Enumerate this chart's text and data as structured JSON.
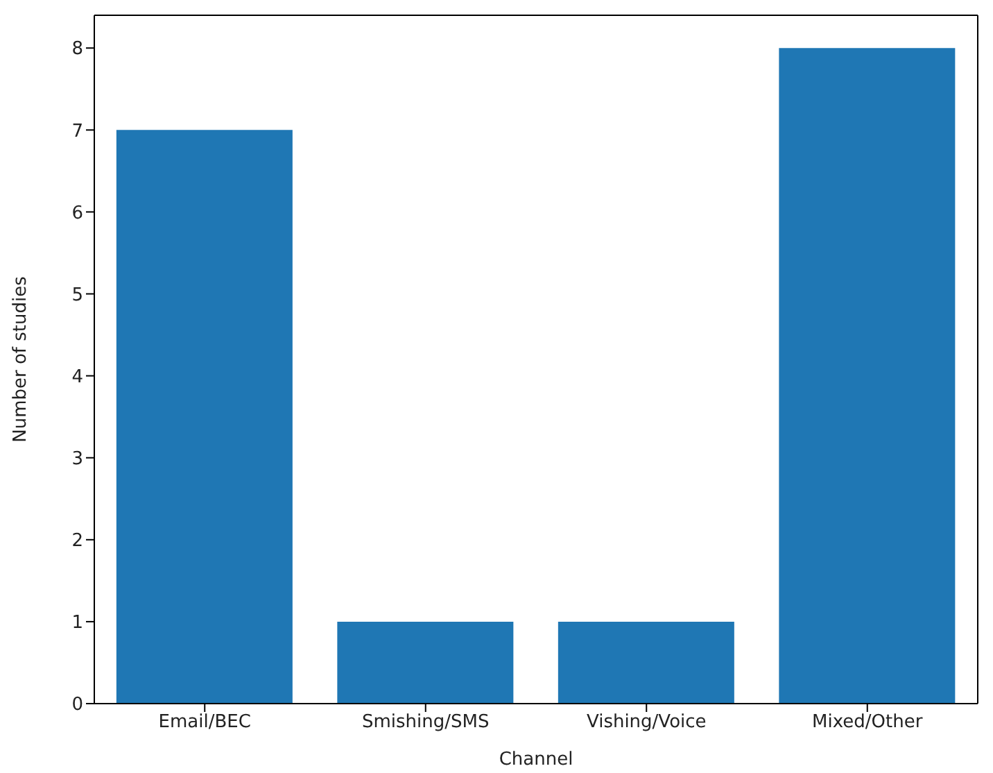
{
  "chart_data": {
    "type": "bar",
    "xlabel": "Channel",
    "ylabel": "Number of studies",
    "categories": [
      "Email/BEC",
      "Smishing/SMS",
      "Vishing/Voice",
      "Mixed/Other"
    ],
    "values": [
      7,
      1,
      1,
      8
    ],
    "color": "#1f77b4",
    "ylim": [
      0,
      8.4
    ],
    "yticks": [
      0,
      1,
      2,
      3,
      4,
      5,
      6,
      7,
      8
    ],
    "grid": false,
    "legend": false
  }
}
